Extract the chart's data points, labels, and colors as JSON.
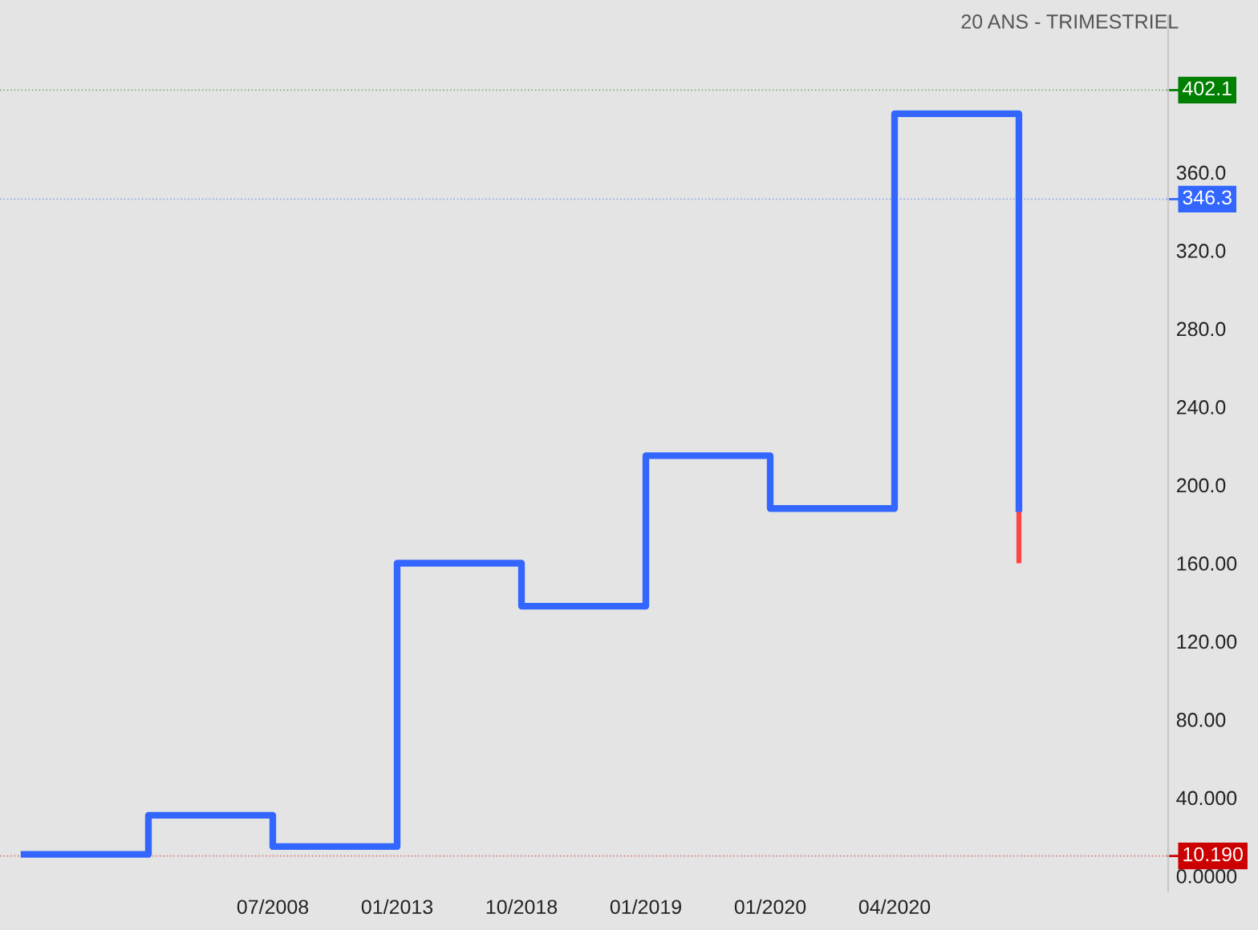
{
  "chart_data": {
    "type": "step",
    "subtitle": "20 ANS - TRIMESTRIEL",
    "categories": [
      null,
      null,
      "07/2008",
      "01/2013",
      "10/2018",
      "01/2019",
      "01/2020",
      "04/2020",
      null
    ],
    "series": [
      {
        "color": "#3366ff",
        "values": [
          11,
          31,
          15,
          160,
          138,
          215,
          188,
          390,
          188
        ]
      },
      {
        "type": "bar",
        "color": "#ff4444",
        "values": [
          null,
          null,
          null,
          null,
          null,
          null,
          null,
          null,
          28
        ],
        "base": [
          null,
          null,
          null,
          null,
          null,
          null,
          null,
          null,
          160
        ]
      }
    ],
    "ylim": [
      -8,
      440
    ],
    "yticks": [
      {
        "value": 0,
        "label": "0.0000"
      },
      {
        "value": 40,
        "label": "40.000"
      },
      {
        "value": 80,
        "label": "80.00"
      },
      {
        "value": 120,
        "label": "120.00"
      },
      {
        "value": 160,
        "label": "160.00"
      },
      {
        "value": 200,
        "label": "200.0"
      },
      {
        "value": 240,
        "label": "240.0"
      },
      {
        "value": 280,
        "label": "280.0"
      },
      {
        "value": 320,
        "label": "320.0"
      },
      {
        "value": 360,
        "label": "360.0"
      }
    ],
    "ref_lines": [
      {
        "axis": "y",
        "value": 402.1,
        "label": "402.1",
        "color": "#008000"
      },
      {
        "axis": "y",
        "value": 346.3,
        "label": "346.3",
        "color": "#3366ff"
      },
      {
        "axis": "y",
        "value": 10.19,
        "label": "10.190",
        "color": "#cc0000"
      }
    ],
    "grid": false,
    "legend": false
  }
}
